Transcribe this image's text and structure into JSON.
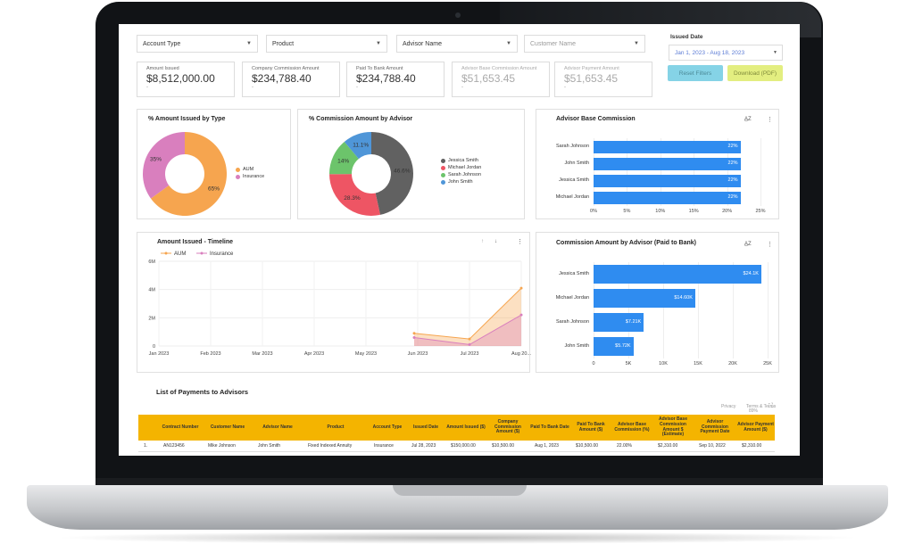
{
  "filters": {
    "account_type": "Account Type",
    "product": "Product",
    "advisor_name": "Advisor Name",
    "customer_name": "Customer Name",
    "issued_date_label": "Issued Date",
    "issued_date_value": "Jan 1, 2023 - Aug 18, 2023",
    "reset_label": "Reset Filters",
    "download_label": "Download (PDF)"
  },
  "kpis": [
    {
      "label": "Amount Issued",
      "value": "$8,512,000.00",
      "sub": "-"
    },
    {
      "label": "Company Commission Amount",
      "value": "$234,788.40",
      "sub": "-"
    },
    {
      "label": "Paid To Bank Amount",
      "value": "$234,788.40",
      "sub": "-"
    },
    {
      "label": "Advisor Base Commission Amount",
      "value": "$51,653.45",
      "sub": "-"
    },
    {
      "label": "Advisor Payment Amount",
      "value": "$51,653.45",
      "sub": "-"
    }
  ],
  "panels": {
    "amount_by_type_title": "% Amount Issued by Type",
    "commission_by_advisor_title": "% Commission Amount by Advisor",
    "advisor_base_title": "Advisor Base Commission",
    "timeline_title": "Amount Issued - Timeline",
    "commission_paid_title": "Commission Amount by Advisor (Paid to Bank)"
  },
  "chart_data": [
    {
      "type": "pie",
      "title": "% Amount Issued by Type",
      "categories": [
        "AUM",
        "Insurance"
      ],
      "values": [
        65,
        35
      ],
      "labels": [
        "65%",
        "35%"
      ],
      "colors": [
        "#f6a54f",
        "#d97fbe"
      ],
      "legend": "right"
    },
    {
      "type": "pie",
      "title": "% Commission Amount by Advisor",
      "categories": [
        "Jessica Smith",
        "Michael Jordan",
        "Sarah Johnson",
        "John Smith"
      ],
      "values": [
        46.6,
        28.3,
        14,
        11.1
      ],
      "labels": [
        "46.6%",
        "28.3%",
        "14%",
        "11.1%"
      ],
      "colors": [
        "#616161",
        "#ee5564",
        "#6cc46b",
        "#4f96d8"
      ],
      "legend": "right"
    },
    {
      "type": "bar",
      "title": "Advisor Base Commission",
      "orientation": "horizontal",
      "categories": [
        "Sarah Johnson",
        "John Smith",
        "Jessica Smith",
        "Michael Jordan"
      ],
      "values": [
        22,
        22,
        22,
        22
      ],
      "labels": [
        "22%",
        "22%",
        "22%",
        "22%"
      ],
      "xticks": [
        "0%",
        "5%",
        "10%",
        "15%",
        "20%",
        "25%"
      ],
      "xlim": [
        0,
        25
      ]
    },
    {
      "type": "area",
      "title": "Amount Issued - Timeline",
      "x": [
        "Jan 2023",
        "Feb 2023",
        "Mar 2023",
        "Apr 2023",
        "May 2023",
        "Jun 2023",
        "Jul 2023",
        "Aug 20..."
      ],
      "series": [
        {
          "name": "AUM",
          "values": [
            0,
            0,
            0,
            0,
            0,
            0.9,
            0.5,
            4.1
          ]
        },
        {
          "name": "Insurance",
          "values": [
            0,
            0,
            0,
            0,
            0,
            0.6,
            0.1,
            2.2
          ]
        }
      ],
      "yticks": [
        "0",
        "2M",
        "4M",
        "6M"
      ],
      "ylim": [
        0,
        6
      ],
      "colors": [
        "#f6a54f",
        "#d97fbe"
      ],
      "legend": "top-left"
    },
    {
      "type": "bar",
      "title": "Commission Amount by Advisor (Paid to Bank)",
      "orientation": "horizontal",
      "categories": [
        "Jessica Smith",
        "Michael Jordan",
        "Sarah Johnson",
        "John Smith"
      ],
      "values": [
        24.1,
        14.6,
        7.21,
        5.72
      ],
      "labels": [
        "$24.1K",
        "$14.60K",
        "$7.21K",
        "$5.72K"
      ],
      "xticks": [
        "0",
        "5K",
        "10K",
        "15K",
        "20K",
        "25K"
      ],
      "xlim": [
        0,
        25
      ]
    }
  ],
  "table": {
    "title": "List of Payments to Advisors",
    "controls": {
      "privacy": "Privacy",
      "terms": "Terms & Terms",
      "size": "89%"
    },
    "headers": [
      "Contract Number",
      "Customer Name",
      "Advisor Name",
      "Product",
      "Account Type",
      "Issued Date",
      "Amount Issued ($)",
      "Company Commission Amount ($)",
      "Paid To Bank Date",
      "Paid To Bank Amount ($)",
      "Advisor Base Commission (%)",
      "Advisor Base Commission Amount $ (Estimate)",
      "Advisor Commission Payment Date",
      "Advisor Payment Amount ($)"
    ],
    "rows": [
      [
        "1.",
        "AN123456",
        "Mike Johnson",
        "John Smith",
        "Fixed Indexed Annuity",
        "Insurance",
        "Jul 28, 2023",
        "$150,000.00",
        "$10,500.00",
        "Aug 1, 2023",
        "$10,500.00",
        "22.00%",
        "$2,310.00",
        "Sep 10, 2022",
        "$2,310.00"
      ]
    ]
  }
}
